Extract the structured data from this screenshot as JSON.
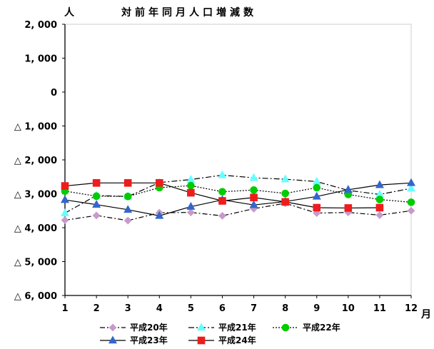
{
  "chart_data": {
    "type": "line",
    "title": "対前年同月人口増減数",
    "ylabel": "人",
    "xlabel": "月",
    "x": [
      "1",
      "2",
      "3",
      "4",
      "5",
      "6",
      "7",
      "8",
      "9",
      "10",
      "11",
      "12"
    ],
    "ylim": [
      -6000,
      2000
    ],
    "y_ticks": [
      2000,
      1000,
      0,
      -1000,
      -2000,
      -3000,
      -4000,
      -5000,
      -6000
    ],
    "y_tick_labels": [
      "2, 000",
      "1, 000",
      "0",
      "△ 1, 000",
      "△ 2, 000",
      "△ 3, 000",
      "△ 4, 000",
      "△ 5, 000",
      "△ 6, 000"
    ],
    "grid": false,
    "legend_position": "bottom",
    "series": [
      {
        "name": "平成20年",
        "color": "#c79ac9",
        "dash": "7,3,2,3",
        "marker": "diamond",
        "values": [
          -3780,
          -3640,
          -3790,
          -3560,
          -3550,
          -3650,
          -3440,
          -3280,
          -3570,
          -3550,
          -3630,
          -3500
        ]
      },
      {
        "name": "平成21年",
        "color": "#66ffff",
        "dash": "8,3,2,3",
        "marker": "triangle",
        "values": [
          -3570,
          -3050,
          -3080,
          -2670,
          -2580,
          -2450,
          -2530,
          -2570,
          -2640,
          -2900,
          -3020,
          -2840
        ]
      },
      {
        "name": "平成22年",
        "color": "#00cc00",
        "dash": "2,2",
        "marker": "circle",
        "values": [
          -2920,
          -3070,
          -3080,
          -2820,
          -2760,
          -2940,
          -2890,
          -2990,
          -2820,
          -3020,
          -3170,
          -3250
        ]
      },
      {
        "name": "平成23年",
        "color": "#3366cc",
        "dash": "",
        "marker": "triangle",
        "values": [
          -3180,
          -3320,
          -3470,
          -3650,
          -3380,
          -3180,
          -3330,
          -3230,
          -3080,
          -2880,
          -2740,
          -2680
        ]
      },
      {
        "name": "平成24年",
        "color": "#ee1c1c",
        "dash": "",
        "marker": "square",
        "values": [
          -2770,
          -2680,
          -2680,
          -2680,
          -2970,
          -3210,
          -3110,
          -3240,
          -3410,
          -3420,
          -3410,
          null
        ]
      }
    ]
  }
}
